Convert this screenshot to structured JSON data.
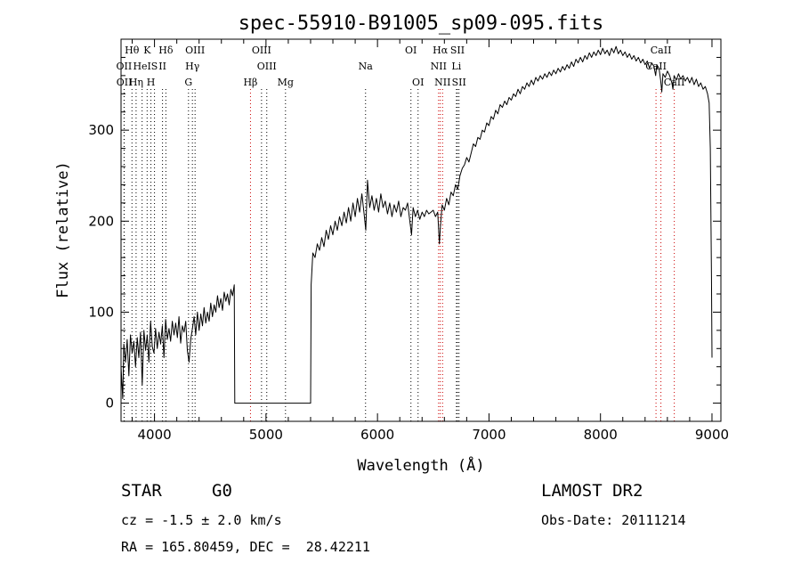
{
  "chart_data": {
    "type": "line",
    "title": "spec-55910-B91005_sp09-095.fits",
    "xlabel": "Wavelength (Å)",
    "ylabel": "Flux (relative)",
    "xlim": [
      3700,
      9080
    ],
    "ylim": [
      -20,
      400
    ],
    "x_ticks": [
      4000,
      5000,
      6000,
      7000,
      8000,
      9000
    ],
    "y_ticks": [
      0,
      100,
      200,
      300
    ],
    "grid": false,
    "series": [
      {
        "points": [
          [
            3700,
            40
          ],
          [
            3715,
            5
          ],
          [
            3725,
            65
          ],
          [
            3740,
            45
          ],
          [
            3755,
            70
          ],
          [
            3770,
            30
          ],
          [
            3785,
            75
          ],
          [
            3800,
            55
          ],
          [
            3815,
            68
          ],
          [
            3830,
            40
          ],
          [
            3845,
            72
          ],
          [
            3860,
            50
          ],
          [
            3875,
            78
          ],
          [
            3890,
            20
          ],
          [
            3905,
            80
          ],
          [
            3920,
            58
          ],
          [
            3935,
            75
          ],
          [
            3950,
            45
          ],
          [
            3965,
            90
          ],
          [
            3980,
            62
          ],
          [
            3995,
            55
          ],
          [
            4010,
            82
          ],
          [
            4025,
            60
          ],
          [
            4040,
            78
          ],
          [
            4055,
            65
          ],
          [
            4070,
            85
          ],
          [
            4085,
            50
          ],
          [
            4100,
            92
          ],
          [
            4115,
            70
          ],
          [
            4130,
            82
          ],
          [
            4145,
            68
          ],
          [
            4160,
            90
          ],
          [
            4175,
            75
          ],
          [
            4190,
            88
          ],
          [
            4205,
            72
          ],
          [
            4220,
            95
          ],
          [
            4235,
            66
          ],
          [
            4250,
            85
          ],
          [
            4265,
            78
          ],
          [
            4280,
            90
          ],
          [
            4295,
            58
          ],
          [
            4310,
            45
          ],
          [
            4325,
            70
          ],
          [
            4340,
            82
          ],
          [
            4355,
            95
          ],
          [
            4370,
            75
          ],
          [
            4385,
            100
          ],
          [
            4400,
            80
          ],
          [
            4415,
            98
          ],
          [
            4430,
            85
          ],
          [
            4445,
            105
          ],
          [
            4460,
            88
          ],
          [
            4475,
            100
          ],
          [
            4490,
            90
          ],
          [
            4505,
            110
          ],
          [
            4520,
            95
          ],
          [
            4535,
            108
          ],
          [
            4550,
            100
          ],
          [
            4565,
            118
          ],
          [
            4580,
            105
          ],
          [
            4595,
            115
          ],
          [
            4610,
            102
          ],
          [
            4625,
            122
          ],
          [
            4640,
            112
          ],
          [
            4655,
            120
          ],
          [
            4670,
            108
          ],
          [
            4685,
            125
          ],
          [
            4700,
            118
          ],
          [
            4715,
            130
          ],
          [
            4720,
            0
          ],
          [
            5400,
            0
          ],
          [
            5405,
            130
          ],
          [
            5420,
            165
          ],
          [
            5440,
            160
          ],
          [
            5460,
            175
          ],
          [
            5480,
            168
          ],
          [
            5500,
            182
          ],
          [
            5520,
            172
          ],
          [
            5540,
            190
          ],
          [
            5560,
            180
          ],
          [
            5580,
            195
          ],
          [
            5600,
            185
          ],
          [
            5620,
            200
          ],
          [
            5640,
            190
          ],
          [
            5660,
            205
          ],
          [
            5680,
            195
          ],
          [
            5700,
            210
          ],
          [
            5720,
            198
          ],
          [
            5740,
            215
          ],
          [
            5760,
            200
          ],
          [
            5780,
            220
          ],
          [
            5800,
            205
          ],
          [
            5820,
            225
          ],
          [
            5840,
            210
          ],
          [
            5860,
            230
          ],
          [
            5880,
            208
          ],
          [
            5895,
            190
          ],
          [
            5910,
            245
          ],
          [
            5930,
            215
          ],
          [
            5950,
            228
          ],
          [
            5970,
            212
          ],
          [
            5990,
            225
          ],
          [
            6010,
            210
          ],
          [
            6030,
            230
          ],
          [
            6050,
            215
          ],
          [
            6070,
            222
          ],
          [
            6090,
            208
          ],
          [
            6110,
            220
          ],
          [
            6130,
            205
          ],
          [
            6150,
            218
          ],
          [
            6170,
            210
          ],
          [
            6190,
            222
          ],
          [
            6210,
            205
          ],
          [
            6230,
            215
          ],
          [
            6250,
            212
          ],
          [
            6270,
            220
          ],
          [
            6290,
            200
          ],
          [
            6305,
            185
          ],
          [
            6320,
            215
          ],
          [
            6340,
            205
          ],
          [
            6360,
            212
          ],
          [
            6380,
            202
          ],
          [
            6400,
            210
          ],
          [
            6420,
            205
          ],
          [
            6440,
            212
          ],
          [
            6460,
            208
          ],
          [
            6480,
            210
          ],
          [
            6500,
            212
          ],
          [
            6520,
            205
          ],
          [
            6540,
            210
          ],
          [
            6555,
            175
          ],
          [
            6565,
            195
          ],
          [
            6580,
            218
          ],
          [
            6600,
            212
          ],
          [
            6620,
            225
          ],
          [
            6640,
            218
          ],
          [
            6660,
            232
          ],
          [
            6680,
            228
          ],
          [
            6700,
            240
          ],
          [
            6720,
            235
          ],
          [
            6740,
            250
          ],
          [
            6760,
            258
          ],
          [
            6780,
            262
          ],
          [
            6800,
            270
          ],
          [
            6820,
            265
          ],
          [
            6840,
            275
          ],
          [
            6860,
            285
          ],
          [
            6880,
            282
          ],
          [
            6900,
            292
          ],
          [
            6920,
            290
          ],
          [
            6940,
            300
          ],
          [
            6960,
            298
          ],
          [
            6980,
            308
          ],
          [
            7000,
            305
          ],
          [
            7020,
            315
          ],
          [
            7040,
            312
          ],
          [
            7060,
            322
          ],
          [
            7080,
            318
          ],
          [
            7100,
            328
          ],
          [
            7120,
            325
          ],
          [
            7140,
            332
          ],
          [
            7160,
            328
          ],
          [
            7180,
            336
          ],
          [
            7200,
            333
          ],
          [
            7220,
            340
          ],
          [
            7240,
            337
          ],
          [
            7260,
            345
          ],
          [
            7280,
            340
          ],
          [
            7300,
            348
          ],
          [
            7320,
            345
          ],
          [
            7340,
            352
          ],
          [
            7360,
            348
          ],
          [
            7380,
            355
          ],
          [
            7400,
            350
          ],
          [
            7420,
            358
          ],
          [
            7440,
            354
          ],
          [
            7460,
            360
          ],
          [
            7480,
            356
          ],
          [
            7500,
            362
          ],
          [
            7520,
            358
          ],
          [
            7540,
            364
          ],
          [
            7560,
            360
          ],
          [
            7580,
            366
          ],
          [
            7600,
            362
          ],
          [
            7620,
            368
          ],
          [
            7640,
            364
          ],
          [
            7660,
            370
          ],
          [
            7680,
            366
          ],
          [
            7700,
            372
          ],
          [
            7720,
            368
          ],
          [
            7740,
            375
          ],
          [
            7760,
            370
          ],
          [
            7780,
            378
          ],
          [
            7800,
            374
          ],
          [
            7820,
            380
          ],
          [
            7840,
            375
          ],
          [
            7860,
            382
          ],
          [
            7880,
            378
          ],
          [
            7900,
            385
          ],
          [
            7920,
            380
          ],
          [
            7940,
            386
          ],
          [
            7960,
            382
          ],
          [
            7980,
            388
          ],
          [
            8000,
            383
          ],
          [
            8020,
            390
          ],
          [
            8040,
            384
          ],
          [
            8060,
            388
          ],
          [
            8080,
            382
          ],
          [
            8100,
            390
          ],
          [
            8120,
            385
          ],
          [
            8140,
            392
          ],
          [
            8160,
            384
          ],
          [
            8180,
            388
          ],
          [
            8200,
            382
          ],
          [
            8220,
            386
          ],
          [
            8240,
            380
          ],
          [
            8260,
            384
          ],
          [
            8280,
            378
          ],
          [
            8300,
            382
          ],
          [
            8320,
            376
          ],
          [
            8340,
            380
          ],
          [
            8360,
            374
          ],
          [
            8380,
            378
          ],
          [
            8400,
            372
          ],
          [
            8420,
            376
          ],
          [
            8440,
            368
          ],
          [
            8460,
            374
          ],
          [
            8480,
            370
          ],
          [
            8495,
            360
          ],
          [
            8505,
            372
          ],
          [
            8525,
            368
          ],
          [
            8540,
            355
          ],
          [
            8550,
            342
          ],
          [
            8560,
            362
          ],
          [
            8580,
            358
          ],
          [
            8600,
            365
          ],
          [
            8620,
            360
          ],
          [
            8640,
            352
          ],
          [
            8650,
            345
          ],
          [
            8660,
            360
          ],
          [
            8680,
            355
          ],
          [
            8700,
            362
          ],
          [
            8720,
            356
          ],
          [
            8740,
            360
          ],
          [
            8760,
            354
          ],
          [
            8780,
            358
          ],
          [
            8800,
            352
          ],
          [
            8820,
            358
          ],
          [
            8840,
            350
          ],
          [
            8860,
            356
          ],
          [
            8880,
            348
          ],
          [
            8900,
            352
          ],
          [
            8920,
            345
          ],
          [
            8940,
            348
          ],
          [
            8960,
            340
          ],
          [
            8975,
            330
          ],
          [
            8985,
            280
          ],
          [
            8995,
            140
          ],
          [
            9000,
            50
          ]
        ]
      }
    ],
    "spectral_lines": [
      {
        "label": "Hθ",
        "x": 3798,
        "row": 0,
        "color": "#000000"
      },
      {
        "label": "K",
        "x": 3934,
        "row": 0,
        "color": "#000000"
      },
      {
        "label": "Hδ",
        "x": 4102,
        "row": 0,
        "color": "#000000"
      },
      {
        "label": "OIII",
        "x": 4364,
        "row": 0,
        "color": "#000000"
      },
      {
        "label": "OIII",
        "x": 4960,
        "row": 0,
        "color": "#000000"
      },
      {
        "label": "OI",
        "x": 6300,
        "row": 0,
        "color": "#000000"
      },
      {
        "label": "Hα",
        "x": 6563,
        "row": 0,
        "color": "#cc0000"
      },
      {
        "label": "SII",
        "x": 6717,
        "row": 0,
        "color": "#000000"
      },
      {
        "label": "CaII",
        "x": 8542,
        "row": 0,
        "color": "#cc0000"
      },
      {
        "label": "OII",
        "x": 3727,
        "row": 1,
        "color": "#000000"
      },
      {
        "label": "HeI",
        "x": 3889,
        "row": 1,
        "color": "#000000"
      },
      {
        "label": "S",
        "x": 4000,
        "row": 1,
        "color": "#000000"
      },
      {
        "label": "II",
        "x": 4072,
        "row": 1,
        "color": "#000000"
      },
      {
        "label": "Hγ",
        "x": 4340,
        "row": 1,
        "color": "#000000"
      },
      {
        "label": "OIII",
        "x": 5007,
        "row": 1,
        "color": "#000000"
      },
      {
        "label": "Na",
        "x": 5893,
        "row": 1,
        "color": "#000000"
      },
      {
        "label": "NII",
        "x": 6548,
        "row": 1,
        "color": "#cc0000"
      },
      {
        "label": "Li",
        "x": 6708,
        "row": 1,
        "color": "#000000"
      },
      {
        "label": "CaII",
        "x": 8498,
        "row": 1,
        "color": "#cc0000"
      },
      {
        "label": "OII",
        "x": 3729,
        "row": 2,
        "color": "#000000"
      },
      {
        "label": "Hη",
        "x": 3835,
        "row": 2,
        "color": "#000000"
      },
      {
        "label": "H",
        "x": 3968,
        "row": 2,
        "color": "#000000"
      },
      {
        "label": "G",
        "x": 4305,
        "row": 2,
        "color": "#000000"
      },
      {
        "label": "Hβ",
        "x": 4861,
        "row": 2,
        "color": "#cc0000"
      },
      {
        "label": "Mg",
        "x": 5175,
        "row": 2,
        "color": "#000000"
      },
      {
        "label": "OI",
        "x": 6364,
        "row": 2,
        "color": "#000000"
      },
      {
        "label": "NII",
        "x": 6584,
        "row": 2,
        "color": "#cc0000"
      },
      {
        "label": "SII",
        "x": 6731,
        "row": 2,
        "color": "#000000"
      },
      {
        "label": "CaII",
        "x": 8662,
        "row": 2,
        "color": "#cc0000"
      }
    ]
  },
  "info": {
    "class_label": "STAR",
    "subclass": "G0",
    "survey": "LAMOST DR2",
    "cz": "cz = -1.5 ± 2.0 km/s",
    "obs_date": "Obs-Date: 20111214",
    "coords": "RA = 165.80459, DEC =  28.42211"
  }
}
